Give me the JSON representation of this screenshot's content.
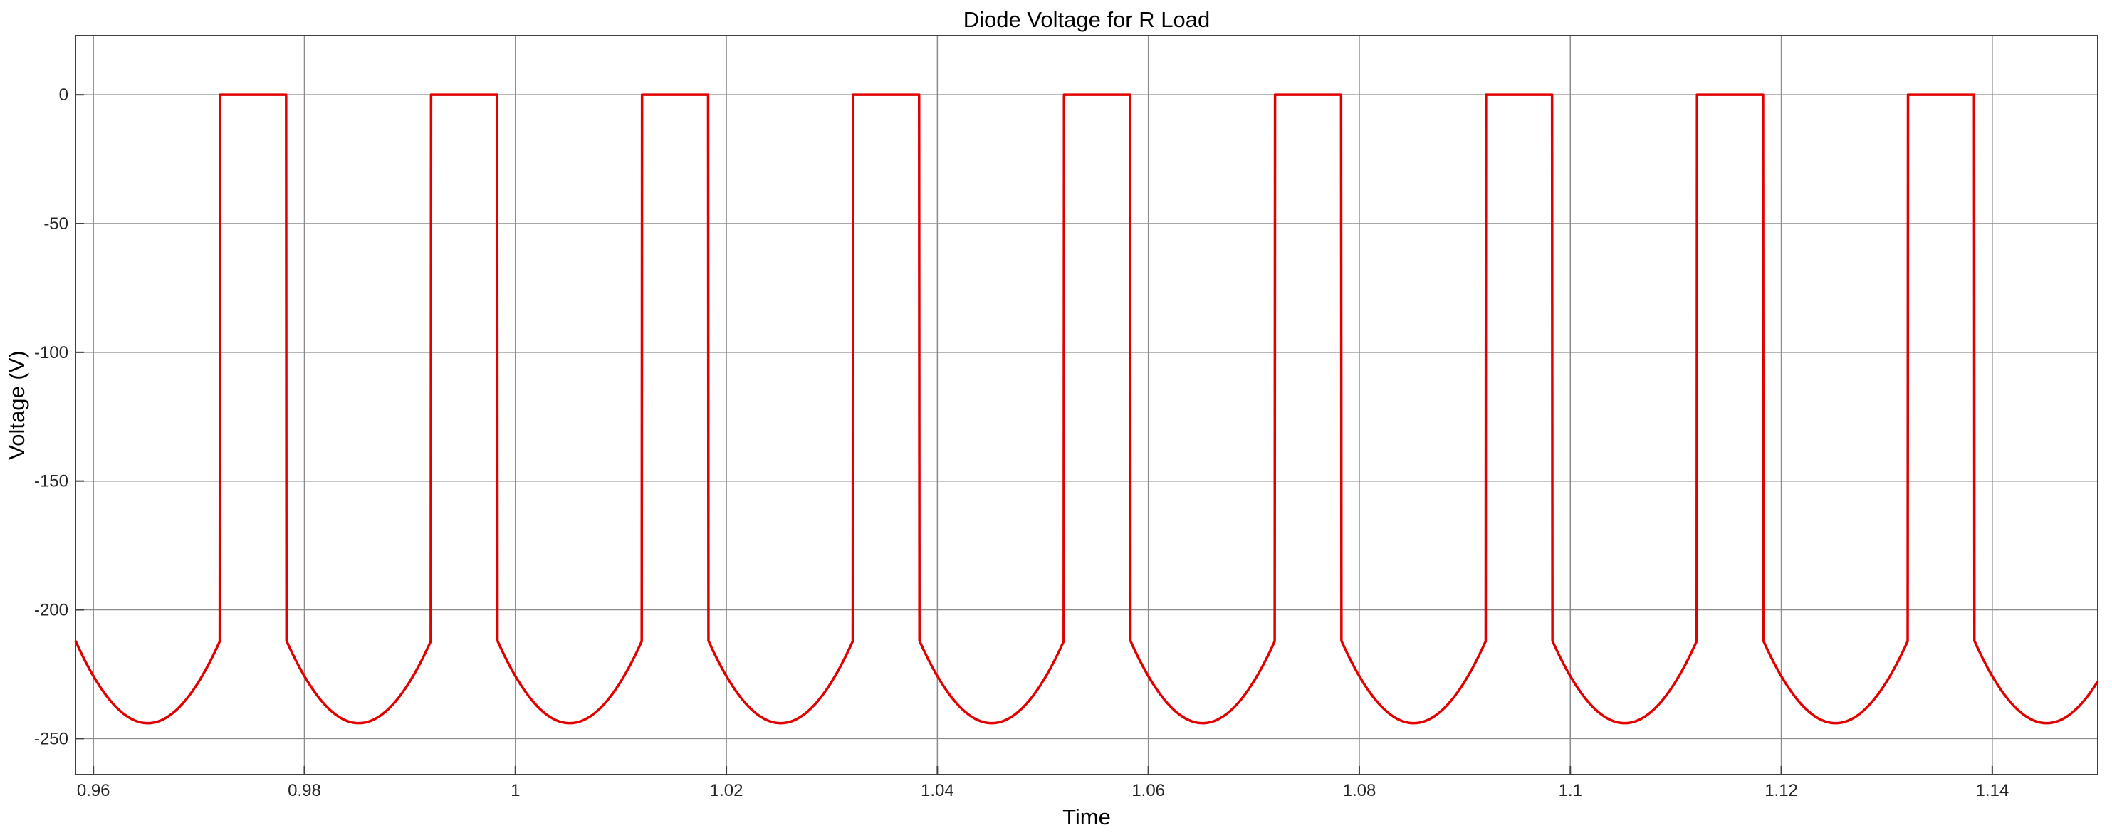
{
  "chart_data": {
    "type": "line",
    "title": "Diode Voltage for R Load",
    "xlabel": "Time",
    "ylabel": "Voltage (V)",
    "xlim": [
      0.9583,
      1.15
    ],
    "ylim": [
      -264,
      23
    ],
    "grid": true,
    "xticks": [
      0.96,
      0.98,
      1,
      1.02,
      1.04,
      1.06,
      1.08,
      1.1,
      1.12,
      1.14
    ],
    "xtick_labels": [
      "0.96",
      "0.98",
      "1",
      "1.02",
      "1.04",
      "1.06",
      "1.08",
      "1.1",
      "1.12",
      "1.14"
    ],
    "yticks": [
      0,
      -50,
      -100,
      -150,
      -200,
      -250
    ],
    "ytick_labels": [
      "0",
      "-50",
      "-100",
      "-150",
      "-200",
      "-250"
    ],
    "series": [
      {
        "color": "#e00000",
        "period": 0.02,
        "phase_start": 0.9583,
        "peak": -244,
        "notch_voltage": -212,
        "conduction_start": 0.972,
        "conduction_end": 0.9787
      }
    ]
  },
  "colors": {
    "background": "#ffffff",
    "grid": "#8c8c8c",
    "axes": "#404040",
    "line": "#e00000"
  }
}
